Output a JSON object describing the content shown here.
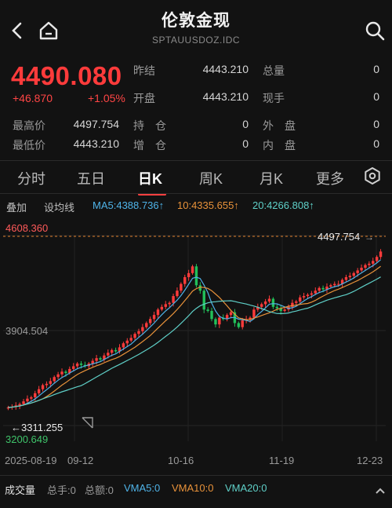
{
  "header": {
    "title": "伦敦金现",
    "subtitle": "SPTAUUSDOZ.IDC",
    "back_icon": "chevron-left-icon",
    "home_icon": "home-icon",
    "search_icon": "search-icon"
  },
  "quote": {
    "price": "4490.080",
    "change": "+46.870",
    "change_pct": "+1.05%",
    "color_up": "#ff3b3b",
    "stats": [
      {
        "label": "昨结",
        "value": "4443.210",
        "label2": "总量",
        "value2": "0"
      },
      {
        "label": "开盘",
        "value": "4443.210",
        "label2": "现手",
        "value2": "0"
      },
      {
        "label": "最高价",
        "value": "4497.754",
        "label_mid": "持　仓",
        "value_mid": "0",
        "label2": "外　盘",
        "value2": "0"
      },
      {
        "label": "最低价",
        "value": "4443.210",
        "label_mid": "增　仓",
        "value_mid": "0",
        "label2": "内　盘",
        "value2": "0"
      }
    ]
  },
  "tabs": {
    "items": [
      "分时",
      "五日",
      "日K",
      "周K",
      "月K",
      "更多"
    ],
    "active": "日K",
    "settings_icon": "gear-icon"
  },
  "indicators": {
    "overlay_label": "叠加",
    "style_label": "设均线",
    "ma5": "MA5:4388.736↑",
    "ma10": "10:4335.655↑",
    "ma20": "20:4266.808↑",
    "ma5_color": "#4fb3e8",
    "ma10_color": "#e8923a",
    "ma20_color": "#5fd0c8"
  },
  "chart_labels": {
    "y_top": "4608.360",
    "y_mid": "3904.504",
    "y_bottom": "3200.649",
    "max_label": "4497.754",
    "min_label": "3311.255",
    "x_ticks": [
      "2025-08-19",
      "09-12",
      "10-16",
      "11-19",
      "12-23"
    ]
  },
  "volume_bar": {
    "title": "成交量",
    "total_hands": "总手:0",
    "total_amount": "总额:0",
    "vma5": "VMA5:0",
    "vma10": "VMA10:0",
    "vma20": "VMA20:0"
  },
  "chart_data": {
    "type": "candlestick",
    "ylim": [
      3200.649,
      4608.36
    ],
    "x_ticks": [
      "2025-08-19",
      "09-12",
      "10-16",
      "11-19",
      "12-23"
    ],
    "close": [
      3335,
      3340,
      3350,
      3360,
      3380,
      3400,
      3410,
      3440,
      3470,
      3500,
      3510,
      3530,
      3560,
      3580,
      3600,
      3590,
      3620,
      3640,
      3660,
      3650,
      3640,
      3660,
      3680,
      3700,
      3690,
      3720,
      3740,
      3760,
      3750,
      3780,
      3810,
      3830,
      3850,
      3880,
      3900,
      3930,
      3960,
      3990,
      4020,
      4060,
      4080,
      4100,
      4110,
      4160,
      4200,
      4250,
      4300,
      4330,
      4380,
      4240,
      4200,
      4060,
      4050,
      3990,
      3950,
      4000,
      3990,
      4020,
      4040,
      3960,
      3930,
      3980,
      3990,
      4000,
      4060,
      4080,
      4100,
      4120,
      4140,
      4080,
      4070,
      4050,
      4060,
      4080,
      4110,
      4120,
      4150,
      4160,
      4170,
      4180,
      4200,
      4220,
      4210,
      4230,
      4240,
      4250,
      4250,
      4280,
      4300,
      4310,
      4330,
      4350,
      4370,
      4390,
      4400,
      4420,
      4450,
      4490
    ]
  }
}
